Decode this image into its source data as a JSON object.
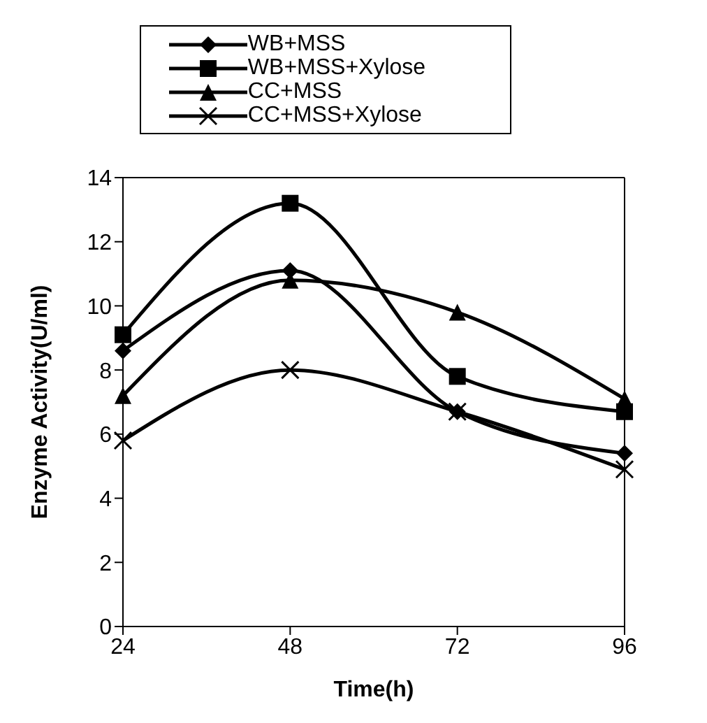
{
  "chart_data": {
    "type": "line",
    "xlabel": "Time(h)",
    "ylabel": "Enzyme Activity(U/ml)",
    "categories": [
      "24",
      "48",
      "72",
      "96"
    ],
    "series": [
      {
        "name": "WB+MSS",
        "color": "#000000",
        "marker": "diamond",
        "values": [
          8.6,
          11.1,
          6.7,
          5.4
        ]
      },
      {
        "name": "WB+MSS+Xylose",
        "color": "#000000",
        "marker": "square",
        "values": [
          9.1,
          13.2,
          7.8,
          6.7
        ]
      },
      {
        "name": "CC+MSS",
        "color": "#000000",
        "marker": "triangle",
        "values": [
          7.2,
          10.8,
          9.8,
          7.1
        ]
      },
      {
        "name": "CC+MSS+Xylose",
        "color": "#000000",
        "marker": "cross",
        "values": [
          5.8,
          8.0,
          6.7,
          4.9
        ]
      }
    ],
    "ylim": [
      0,
      14
    ],
    "yticks": [
      0,
      2,
      4,
      6,
      8,
      10,
      12,
      14
    ],
    "grid": false,
    "legend": "top",
    "line_style": "solid"
  }
}
